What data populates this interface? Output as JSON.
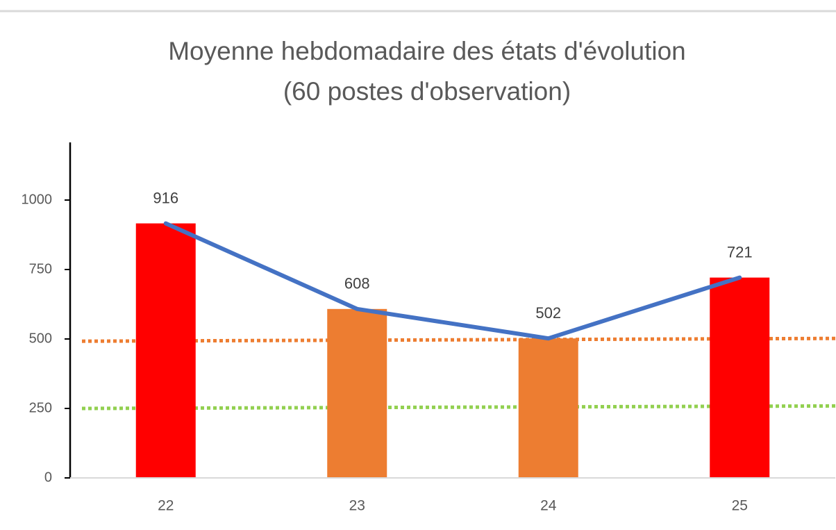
{
  "chart_data": {
    "type": "bar",
    "title": [
      "Moyenne hebdomadaire des états d'évolution",
      "(60 postes d'observation)"
    ],
    "categories": [
      "22",
      "23",
      "24",
      "25"
    ],
    "values": [
      916,
      608,
      502,
      721
    ],
    "colors": [
      "#ff0000",
      "#ed7d31",
      "#ed7d31",
      "#ff0000"
    ],
    "line_color": "#4472c4",
    "thresholds": [
      {
        "color": "#ed7d31",
        "values": [
          492,
          502
        ]
      },
      {
        "color": "#92d050",
        "values": [
          250,
          259
        ]
      }
    ],
    "ylim": [
      0,
      1200
    ],
    "yticks": [
      0,
      250,
      500,
      750,
      1000
    ],
    "grid": false
  }
}
